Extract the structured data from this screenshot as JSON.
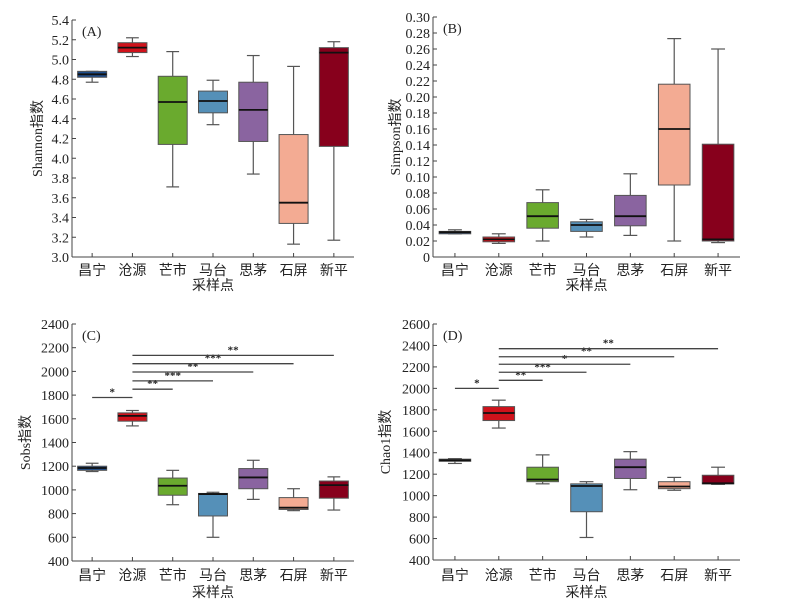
{
  "chart_data": [
    {
      "type": "box",
      "panel_label": "(A)",
      "title": "",
      "xlabel": "采样点",
      "ylabel": "Shannon指数",
      "ylim": [
        3.0,
        5.4
      ],
      "yticks": [
        "3.0",
        "3.2",
        "3.4",
        "3.6",
        "3.8",
        "4.0",
        "4.2",
        "4.4",
        "4.6",
        "4.8",
        "5.0",
        "5.2",
        "5.4"
      ],
      "ytick_values": [
        3.0,
        3.2,
        3.4,
        3.6,
        3.8,
        4.0,
        4.2,
        4.4,
        4.6,
        4.8,
        5.0,
        5.2,
        5.4
      ],
      "categories": [
        "昌宁",
        "沧源",
        "芒市",
        "马台",
        "思茅",
        "石屏",
        "新平"
      ],
      "colors": [
        "#1f4e8c",
        "#d0121b",
        "#6aaa2e",
        "#5590b8",
        "#8a64a0",
        "#f3ab93",
        "#87001c"
      ],
      "boxes": [
        {
          "min": 4.77,
          "q1": 4.82,
          "median": 4.85,
          "q3": 4.88,
          "max": 4.88
        },
        {
          "min": 5.03,
          "q1": 5.07,
          "median": 5.12,
          "q3": 5.17,
          "max": 5.22
        },
        {
          "min": 3.71,
          "q1": 4.14,
          "median": 4.57,
          "q3": 4.83,
          "max": 5.08
        },
        {
          "min": 4.34,
          "q1": 4.46,
          "median": 4.58,
          "q3": 4.68,
          "max": 4.79
        },
        {
          "min": 3.84,
          "q1": 4.17,
          "median": 4.49,
          "q3": 4.77,
          "max": 5.04
        },
        {
          "min": 3.13,
          "q1": 3.34,
          "median": 3.55,
          "q3": 4.24,
          "max": 4.93
        },
        {
          "min": 3.17,
          "q1": 4.12,
          "median": 5.07,
          "q3": 5.12,
          "max": 5.18
        }
      ],
      "significance": []
    },
    {
      "type": "box",
      "panel_label": "(B)",
      "title": "",
      "xlabel": "采样点",
      "ylabel": "Simpson指数",
      "ylim": [
        0,
        0.3
      ],
      "yticks": [
        "0",
        "0.02",
        "0.04",
        "0.06",
        "0.08",
        "0.10",
        "0.12",
        "0.14",
        "0.16",
        "0.18",
        "0.20",
        "0.22",
        "0.24",
        "0.26",
        "0.28",
        "0.30"
      ],
      "ytick_values": [
        0,
        0.02,
        0.04,
        0.06,
        0.08,
        0.1,
        0.12,
        0.14,
        0.16,
        0.18,
        0.2,
        0.22,
        0.24,
        0.26,
        0.28,
        0.3
      ],
      "categories": [
        "昌宁",
        "沧源",
        "芒市",
        "马台",
        "思茅",
        "石屏",
        "新平"
      ],
      "colors": [
        "#1f4e8c",
        "#d0121b",
        "#6aaa2e",
        "#5590b8",
        "#8a64a0",
        "#f3ab93",
        "#87001c"
      ],
      "boxes": [
        {
          "min": 0.029,
          "q1": 0.029,
          "median": 0.031,
          "q3": 0.032,
          "max": 0.034
        },
        {
          "min": 0.017,
          "q1": 0.019,
          "median": 0.022,
          "q3": 0.025,
          "max": 0.029
        },
        {
          "min": 0.02,
          "q1": 0.036,
          "median": 0.051,
          "q3": 0.068,
          "max": 0.084
        },
        {
          "min": 0.025,
          "q1": 0.032,
          "median": 0.04,
          "q3": 0.044,
          "max": 0.047
        },
        {
          "min": 0.027,
          "q1": 0.039,
          "median": 0.051,
          "q3": 0.077,
          "max": 0.104
        },
        {
          "min": 0.02,
          "q1": 0.09,
          "median": 0.16,
          "q3": 0.216,
          "max": 0.273
        },
        {
          "min": 0.018,
          "q1": 0.02,
          "median": 0.022,
          "q3": 0.141,
          "max": 0.26
        }
      ],
      "significance": []
    },
    {
      "type": "box",
      "panel_label": "(C)",
      "title": "",
      "xlabel": "采样点",
      "ylabel": "Sobs指数",
      "ylim": [
        400,
        2400
      ],
      "yticks": [
        "400",
        "600",
        "800",
        "1000",
        "1200",
        "1400",
        "1600",
        "1800",
        "2000",
        "2200",
        "2400"
      ],
      "ytick_values": [
        400,
        600,
        800,
        1000,
        1200,
        1400,
        1600,
        1800,
        2000,
        2200,
        2400
      ],
      "categories": [
        "昌宁",
        "沧源",
        "芒市",
        "马台",
        "思茅",
        "石屏",
        "新平"
      ],
      "colors": [
        "#1f4e8c",
        "#d0121b",
        "#6aaa2e",
        "#5590b8",
        "#8a64a0",
        "#f3ab93",
        "#87001c"
      ],
      "boxes": [
        {
          "min": 1155,
          "q1": 1165,
          "median": 1185,
          "q3": 1200,
          "max": 1225
        },
        {
          "min": 1540,
          "q1": 1580,
          "median": 1625,
          "q3": 1650,
          "max": 1670
        },
        {
          "min": 875,
          "q1": 955,
          "median": 1035,
          "q3": 1100,
          "max": 1165
        },
        {
          "min": 600,
          "q1": 780,
          "median": 965,
          "q3": 970,
          "max": 980
        },
        {
          "min": 920,
          "q1": 1010,
          "median": 1105,
          "q3": 1180,
          "max": 1250
        },
        {
          "min": 825,
          "q1": 835,
          "median": 850,
          "q3": 935,
          "max": 1010
        },
        {
          "min": 830,
          "q1": 930,
          "median": 1040,
          "q3": 1075,
          "max": 1110
        }
      ],
      "significance": [
        {
          "from": 0,
          "to": 1,
          "y": 1780,
          "label": "*"
        },
        {
          "from": 1,
          "to": 2,
          "y": 1850,
          "label": "**"
        },
        {
          "from": 1,
          "to": 3,
          "y": 1920,
          "label": "***"
        },
        {
          "from": 1,
          "to": 4,
          "y": 1995,
          "label": "**"
        },
        {
          "from": 1,
          "to": 5,
          "y": 2065,
          "label": "***"
        },
        {
          "from": 1,
          "to": 6,
          "y": 2135,
          "label": "**"
        }
      ]
    },
    {
      "type": "box",
      "panel_label": "(D)",
      "title": "",
      "xlabel": "采样点",
      "ylabel": "Chao1指数",
      "ylim": [
        400,
        2600
      ],
      "yticks": [
        "400",
        "600",
        "800",
        "1000",
        "1200",
        "1400",
        "1600",
        "1800",
        "2000",
        "2200",
        "2400",
        "2600"
      ],
      "ytick_values": [
        400,
        600,
        800,
        1000,
        1200,
        1400,
        1600,
        1800,
        2000,
        2200,
        2400,
        2600
      ],
      "categories": [
        "昌宁",
        "沧源",
        "芒市",
        "马台",
        "思茅",
        "石屏",
        "新平"
      ],
      "colors": [
        "#1f4e8c",
        "#d0121b",
        "#6aaa2e",
        "#5590b8",
        "#8a64a0",
        "#f3ab93",
        "#87001c"
      ],
      "boxes": [
        {
          "min": 1300,
          "q1": 1320,
          "median": 1330,
          "q3": 1340,
          "max": 1345
        },
        {
          "min": 1630,
          "q1": 1700,
          "median": 1770,
          "q3": 1830,
          "max": 1890
        },
        {
          "min": 1110,
          "q1": 1130,
          "median": 1150,
          "q3": 1265,
          "max": 1380
        },
        {
          "min": 610,
          "q1": 850,
          "median": 1090,
          "q3": 1110,
          "max": 1130
        },
        {
          "min": 1055,
          "q1": 1160,
          "median": 1265,
          "q3": 1340,
          "max": 1410
        },
        {
          "min": 1050,
          "q1": 1065,
          "median": 1085,
          "q3": 1130,
          "max": 1170
        },
        {
          "min": 1105,
          "q1": 1110,
          "median": 1115,
          "q3": 1190,
          "max": 1265
        }
      ],
      "significance": [
        {
          "from": 0,
          "to": 1,
          "y": 2000,
          "label": "*"
        },
        {
          "from": 1,
          "to": 2,
          "y": 2075,
          "label": "**"
        },
        {
          "from": 1,
          "to": 3,
          "y": 2150,
          "label": "***"
        },
        {
          "from": 1,
          "to": 4,
          "y": 2225,
          "label": "*"
        },
        {
          "from": 1,
          "to": 5,
          "y": 2295,
          "label": "**"
        },
        {
          "from": 1,
          "to": 6,
          "y": 2370,
          "label": "**"
        }
      ]
    }
  ]
}
